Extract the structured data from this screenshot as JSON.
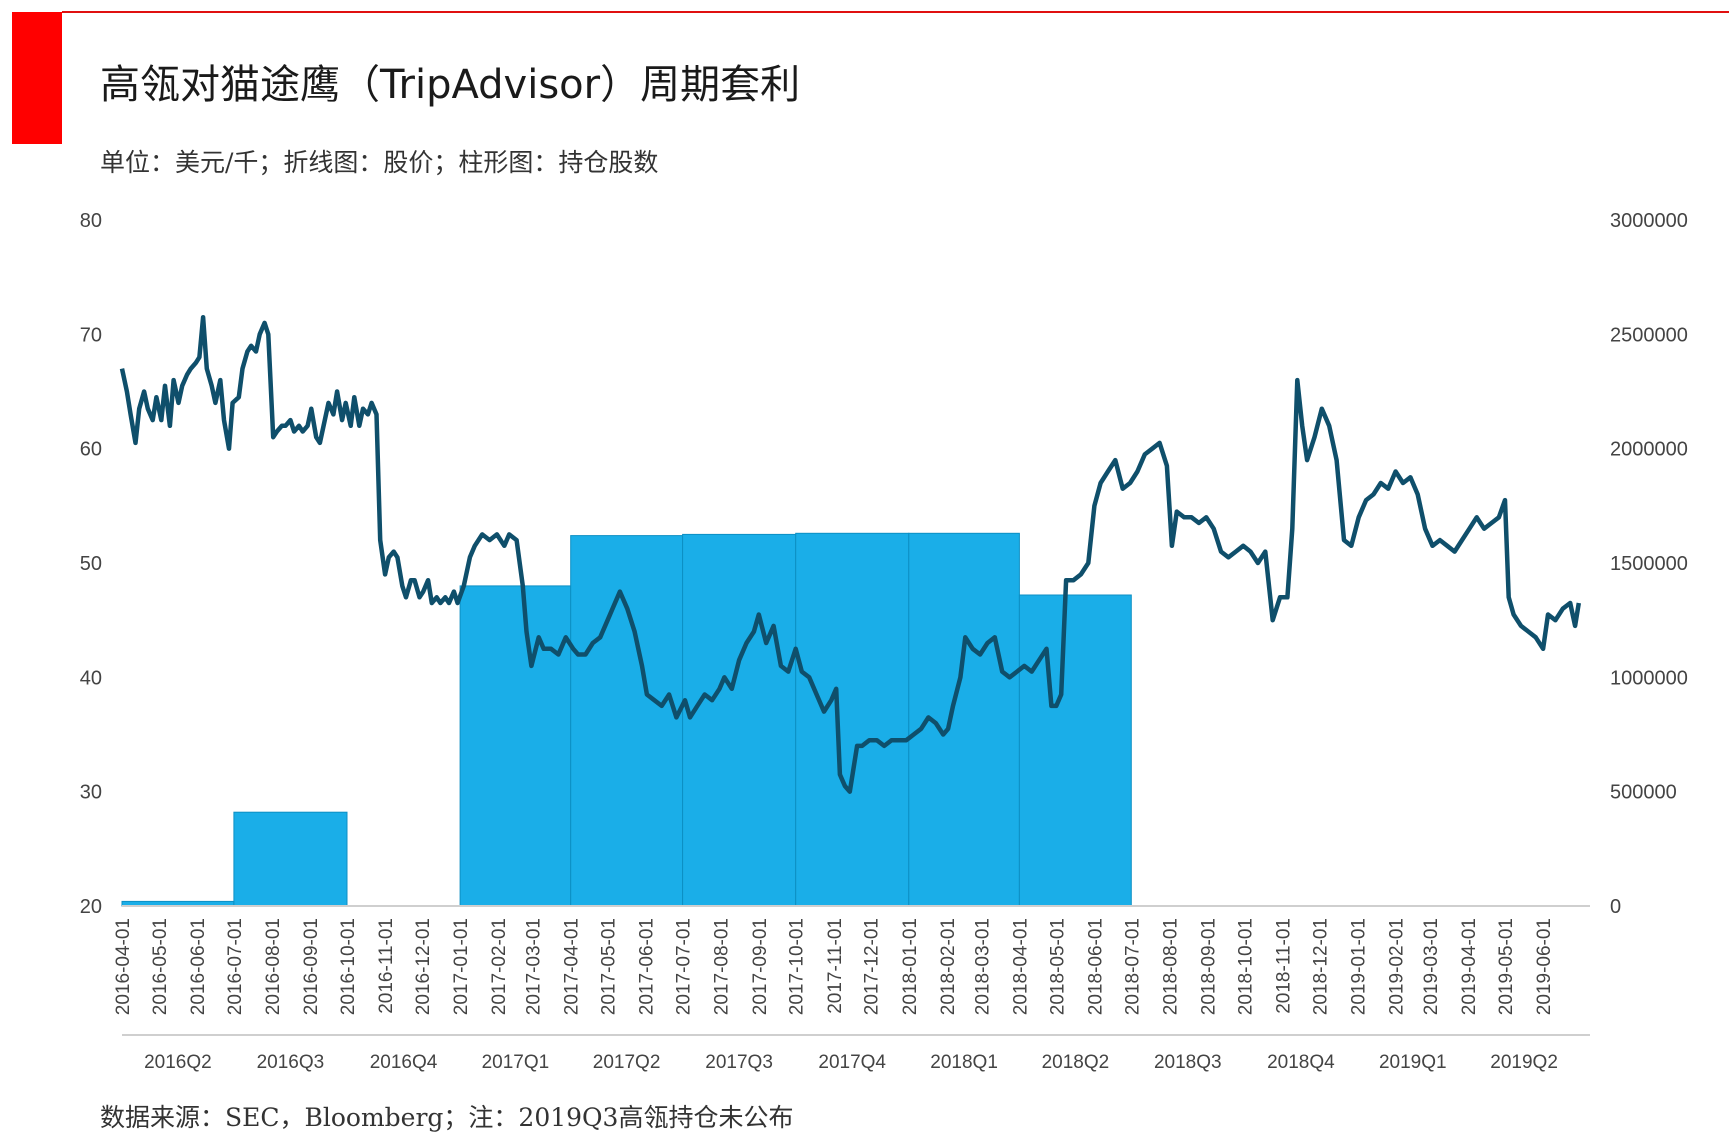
{
  "header": {
    "title": "高瓴对猫途鹰（TripAdvisor）周期套利",
    "subtitle": "单位：美元/千；折线图：股价；柱形图：持仓股数"
  },
  "footer": {
    "source": "数据来源：SEC，Bloomberg；注：2019Q3高瓴持仓未公布"
  },
  "colors": {
    "accent": "#ff0000",
    "line": "#0f4f6b",
    "bar": "#1aaee8"
  },
  "chart_data": {
    "type": "bar+line",
    "y_left": {
      "min": 20,
      "max": 80,
      "ticks": [
        "80",
        "70",
        "60",
        "50",
        "40",
        "30",
        "20"
      ]
    },
    "y_right": {
      "min": 0,
      "max": 3000000,
      "ticks": [
        "3000000",
        "2500000",
        "2000000",
        "1500000",
        "1000000",
        "500000",
        "0"
      ]
    },
    "x_range": [
      "2016-04-01",
      "2019-06-30"
    ],
    "date_ticks": [
      "2016-04-01",
      "2016-05-01",
      "2016-06-01",
      "2016-07-01",
      "2016-08-01",
      "2016-09-01",
      "2016-10-01",
      "2016-11-01",
      "2016-12-01",
      "2017-01-01",
      "2017-02-01",
      "2017-03-01",
      "2017-04-01",
      "2017-05-01",
      "2017-06-01",
      "2017-07-01",
      "2017-08-01",
      "2017-09-01",
      "2017-10-01",
      "2017-11-01",
      "2017-12-01",
      "2018-01-01",
      "2018-02-01",
      "2018-03-01",
      "2018-04-01",
      "2018-05-01",
      "2018-06-01",
      "2018-07-01",
      "2018-08-01",
      "2018-09-01",
      "2018-10-01",
      "2018-11-01",
      "2018-12-01",
      "2019-01-01",
      "2019-02-01",
      "2019-03-01",
      "2019-04-01",
      "2019-05-01",
      "2019-06-01"
    ],
    "quarter_labels": [
      "2016Q2",
      "2016Q3",
      "2016Q4",
      "2017Q1",
      "2017Q2",
      "2017Q3",
      "2017Q4",
      "2018Q1",
      "2018Q2",
      "2018Q3",
      "2018Q4",
      "2019Q1",
      "2019Q2"
    ],
    "bars": {
      "name": "持仓股数",
      "values": [
        20000,
        410000,
        0,
        1400000,
        1620000,
        1625000,
        1630000,
        1630000,
        1360000,
        0,
        0,
        0,
        0
      ]
    },
    "line": {
      "name": "股价",
      "points": [
        [
          "2016-04-01",
          67.0
        ],
        [
          "2016-04-05",
          65.0
        ],
        [
          "2016-04-08",
          63.0
        ],
        [
          "2016-04-12",
          60.5
        ],
        [
          "2016-04-15",
          63.5
        ],
        [
          "2016-04-19",
          65.0
        ],
        [
          "2016-04-22",
          63.5
        ],
        [
          "2016-04-26",
          62.5
        ],
        [
          "2016-04-29",
          64.5
        ],
        [
          "2016-05-03",
          62.5
        ],
        [
          "2016-05-06",
          65.5
        ],
        [
          "2016-05-10",
          62.0
        ],
        [
          "2016-05-13",
          66.0
        ],
        [
          "2016-05-17",
          64.0
        ],
        [
          "2016-05-20",
          65.5
        ],
        [
          "2016-05-24",
          66.5
        ],
        [
          "2016-05-27",
          67.0
        ],
        [
          "2016-05-31",
          67.5
        ],
        [
          "2016-06-03",
          68.0
        ],
        [
          "2016-06-06",
          71.5
        ],
        [
          "2016-06-09",
          67.0
        ],
        [
          "2016-06-13",
          65.5
        ],
        [
          "2016-06-16",
          64.0
        ],
        [
          "2016-06-20",
          66.0
        ],
        [
          "2016-06-23",
          62.5
        ],
        [
          "2016-06-27",
          60.0
        ],
        [
          "2016-06-30",
          64.0
        ],
        [
          "2016-07-05",
          64.5
        ],
        [
          "2016-07-08",
          67.0
        ],
        [
          "2016-07-12",
          68.5
        ],
        [
          "2016-07-15",
          69.0
        ],
        [
          "2016-07-19",
          68.5
        ],
        [
          "2016-07-22",
          70.0
        ],
        [
          "2016-07-26",
          71.0
        ],
        [
          "2016-07-29",
          70.0
        ],
        [
          "2016-08-02",
          61.0
        ],
        [
          "2016-08-05",
          61.5
        ],
        [
          "2016-08-09",
          62.0
        ],
        [
          "2016-08-12",
          62.0
        ],
        [
          "2016-08-16",
          62.5
        ],
        [
          "2016-08-19",
          61.5
        ],
        [
          "2016-08-23",
          62.0
        ],
        [
          "2016-08-26",
          61.5
        ],
        [
          "2016-08-30",
          62.0
        ],
        [
          "2016-09-02",
          63.5
        ],
        [
          "2016-09-06",
          61.0
        ],
        [
          "2016-09-09",
          60.5
        ],
        [
          "2016-09-13",
          62.5
        ],
        [
          "2016-09-16",
          64.0
        ],
        [
          "2016-09-20",
          63.0
        ],
        [
          "2016-09-23",
          65.0
        ],
        [
          "2016-09-27",
          62.5
        ],
        [
          "2016-09-30",
          64.0
        ],
        [
          "2016-10-04",
          62.0
        ],
        [
          "2016-10-07",
          64.5
        ],
        [
          "2016-10-11",
          62.0
        ],
        [
          "2016-10-14",
          63.5
        ],
        [
          "2016-10-18",
          63.0
        ],
        [
          "2016-10-21",
          64.0
        ],
        [
          "2016-10-25",
          63.0
        ],
        [
          "2016-10-28",
          52.0
        ],
        [
          "2016-11-01",
          49.0
        ],
        [
          "2016-11-04",
          50.5
        ],
        [
          "2016-11-08",
          51.0
        ],
        [
          "2016-11-11",
          50.5
        ],
        [
          "2016-11-15",
          48.0
        ],
        [
          "2016-11-18",
          47.0
        ],
        [
          "2016-11-22",
          48.5
        ],
        [
          "2016-11-25",
          48.5
        ],
        [
          "2016-11-29",
          47.0
        ],
        [
          "2016-12-02",
          47.5
        ],
        [
          "2016-12-06",
          48.5
        ],
        [
          "2016-12-09",
          46.5
        ],
        [
          "2016-12-13",
          47.0
        ],
        [
          "2016-12-16",
          46.5
        ],
        [
          "2016-12-20",
          47.0
        ],
        [
          "2016-12-23",
          46.5
        ],
        [
          "2016-12-27",
          47.5
        ],
        [
          "2016-12-30",
          46.5
        ],
        [
          "2017-01-04",
          48.0
        ],
        [
          "2017-01-09",
          50.5
        ],
        [
          "2017-01-13",
          51.5
        ],
        [
          "2017-01-19",
          52.5
        ],
        [
          "2017-01-25",
          52.0
        ],
        [
          "2017-01-31",
          52.5
        ],
        [
          "2017-02-06",
          51.5
        ],
        [
          "2017-02-10",
          52.5
        ],
        [
          "2017-02-16",
          52.0
        ],
        [
          "2017-02-21",
          48.0
        ],
        [
          "2017-02-24",
          44.0
        ],
        [
          "2017-02-28",
          41.0
        ],
        [
          "2017-03-06",
          43.5
        ],
        [
          "2017-03-10",
          42.5
        ],
        [
          "2017-03-16",
          42.5
        ],
        [
          "2017-03-22",
          42.0
        ],
        [
          "2017-03-28",
          43.5
        ],
        [
          "2017-04-03",
          42.5
        ],
        [
          "2017-04-07",
          42.0
        ],
        [
          "2017-04-13",
          42.0
        ],
        [
          "2017-04-19",
          43.0
        ],
        [
          "2017-04-25",
          43.5
        ],
        [
          "2017-05-01",
          45.0
        ],
        [
          "2017-05-05",
          46.0
        ],
        [
          "2017-05-11",
          47.5
        ],
        [
          "2017-05-17",
          46.0
        ],
        [
          "2017-05-23",
          44.0
        ],
        [
          "2017-05-29",
          41.0
        ],
        [
          "2017-06-02",
          38.5
        ],
        [
          "2017-06-08",
          38.0
        ],
        [
          "2017-06-14",
          37.5
        ],
        [
          "2017-06-20",
          38.5
        ],
        [
          "2017-06-26",
          36.5
        ],
        [
          "2017-07-03",
          38.0
        ],
        [
          "2017-07-07",
          36.5
        ],
        [
          "2017-07-13",
          37.5
        ],
        [
          "2017-07-19",
          38.5
        ],
        [
          "2017-07-25",
          38.0
        ],
        [
          "2017-07-31",
          39.0
        ],
        [
          "2017-08-04",
          40.0
        ],
        [
          "2017-08-10",
          39.0
        ],
        [
          "2017-08-16",
          41.5
        ],
        [
          "2017-08-22",
          43.0
        ],
        [
          "2017-08-28",
          44.0
        ],
        [
          "2017-09-01",
          45.5
        ],
        [
          "2017-09-07",
          43.0
        ],
        [
          "2017-09-13",
          44.5
        ],
        [
          "2017-09-19",
          41.0
        ],
        [
          "2017-09-25",
          40.5
        ],
        [
          "2017-10-01",
          42.5
        ],
        [
          "2017-10-06",
          40.5
        ],
        [
          "2017-10-12",
          40.0
        ],
        [
          "2017-10-18",
          38.5
        ],
        [
          "2017-10-24",
          37.0
        ],
        [
          "2017-10-30",
          38.0
        ],
        [
          "2017-11-03",
          39.0
        ],
        [
          "2017-11-06",
          31.5
        ],
        [
          "2017-11-10",
          30.5
        ],
        [
          "2017-11-14",
          30.0
        ],
        [
          "2017-11-20",
          34.0
        ],
        [
          "2017-11-24",
          34.0
        ],
        [
          "2017-11-30",
          34.5
        ],
        [
          "2017-12-06",
          34.5
        ],
        [
          "2017-12-12",
          34.0
        ],
        [
          "2017-12-18",
          34.5
        ],
        [
          "2017-12-24",
          34.5
        ],
        [
          "2017-12-30",
          34.5
        ],
        [
          "2018-01-05",
          35.0
        ],
        [
          "2018-01-11",
          35.5
        ],
        [
          "2018-01-17",
          36.5
        ],
        [
          "2018-01-23",
          36.0
        ],
        [
          "2018-01-29",
          35.0
        ],
        [
          "2018-02-02",
          35.5
        ],
        [
          "2018-02-06",
          37.5
        ],
        [
          "2018-02-12",
          40.0
        ],
        [
          "2018-02-16",
          43.5
        ],
        [
          "2018-02-22",
          42.5
        ],
        [
          "2018-02-28",
          42.0
        ],
        [
          "2018-03-06",
          43.0
        ],
        [
          "2018-03-12",
          43.5
        ],
        [
          "2018-03-18",
          40.5
        ],
        [
          "2018-03-24",
          40.0
        ],
        [
          "2018-03-30",
          40.5
        ],
        [
          "2018-04-05",
          41.0
        ],
        [
          "2018-04-11",
          40.5
        ],
        [
          "2018-04-17",
          41.5
        ],
        [
          "2018-04-23",
          42.5
        ],
        [
          "2018-04-27",
          37.5
        ],
        [
          "2018-05-01",
          37.5
        ],
        [
          "2018-05-05",
          38.5
        ],
        [
          "2018-05-09",
          48.5
        ],
        [
          "2018-05-15",
          48.5
        ],
        [
          "2018-05-21",
          49.0
        ],
        [
          "2018-05-27",
          50.0
        ],
        [
          "2018-06-01",
          55.0
        ],
        [
          "2018-06-06",
          57.0
        ],
        [
          "2018-06-12",
          58.0
        ],
        [
          "2018-06-18",
          59.0
        ],
        [
          "2018-06-24",
          56.5
        ],
        [
          "2018-06-30",
          57.0
        ],
        [
          "2018-07-06",
          58.0
        ],
        [
          "2018-07-12",
          59.5
        ],
        [
          "2018-07-18",
          60.0
        ],
        [
          "2018-07-24",
          60.5
        ],
        [
          "2018-07-30",
          58.5
        ],
        [
          "2018-08-03",
          51.5
        ],
        [
          "2018-08-07",
          54.5
        ],
        [
          "2018-08-13",
          54.0
        ],
        [
          "2018-08-19",
          54.0
        ],
        [
          "2018-08-25",
          53.5
        ],
        [
          "2018-08-31",
          54.0
        ],
        [
          "2018-09-06",
          53.0
        ],
        [
          "2018-09-12",
          51.0
        ],
        [
          "2018-09-18",
          50.5
        ],
        [
          "2018-09-24",
          51.0
        ],
        [
          "2018-09-30",
          51.5
        ],
        [
          "2018-10-06",
          51.0
        ],
        [
          "2018-10-12",
          50.0
        ],
        [
          "2018-10-18",
          51.0
        ],
        [
          "2018-10-24",
          45.0
        ],
        [
          "2018-10-30",
          47.0
        ],
        [
          "2018-11-05",
          47.0
        ],
        [
          "2018-11-09",
          53.0
        ],
        [
          "2018-11-13",
          66.0
        ],
        [
          "2018-11-17",
          62.0
        ],
        [
          "2018-11-21",
          59.0
        ],
        [
          "2018-11-27",
          61.0
        ],
        [
          "2018-12-03",
          63.5
        ],
        [
          "2018-12-09",
          62.0
        ],
        [
          "2018-12-15",
          59.0
        ],
        [
          "2018-12-21",
          52.0
        ],
        [
          "2018-12-27",
          51.5
        ],
        [
          "2019-01-02",
          54.0
        ],
        [
          "2019-01-08",
          55.5
        ],
        [
          "2019-01-14",
          56.0
        ],
        [
          "2019-01-20",
          57.0
        ],
        [
          "2019-01-26",
          56.5
        ],
        [
          "2019-02-01",
          58.0
        ],
        [
          "2019-02-07",
          57.0
        ],
        [
          "2019-02-13",
          57.5
        ],
        [
          "2019-02-19",
          56.0
        ],
        [
          "2019-02-25",
          53.0
        ],
        [
          "2019-03-03",
          51.5
        ],
        [
          "2019-03-09",
          52.0
        ],
        [
          "2019-03-15",
          51.5
        ],
        [
          "2019-03-21",
          51.0
        ],
        [
          "2019-03-27",
          52.0
        ],
        [
          "2019-04-02",
          53.0
        ],
        [
          "2019-04-08",
          54.0
        ],
        [
          "2019-04-14",
          53.0
        ],
        [
          "2019-04-20",
          53.5
        ],
        [
          "2019-04-26",
          54.0
        ],
        [
          "2019-05-01",
          55.5
        ],
        [
          "2019-05-04",
          47.0
        ],
        [
          "2019-05-08",
          45.5
        ],
        [
          "2019-05-14",
          44.5
        ],
        [
          "2019-05-20",
          44.0
        ],
        [
          "2019-05-26",
          43.5
        ],
        [
          "2019-06-01",
          42.5
        ],
        [
          "2019-06-05",
          45.5
        ],
        [
          "2019-06-11",
          45.0
        ],
        [
          "2019-06-17",
          46.0
        ],
        [
          "2019-06-23",
          46.5
        ],
        [
          "2019-06-27",
          44.5
        ],
        [
          "2019-06-30",
          46.5
        ]
      ]
    }
  }
}
